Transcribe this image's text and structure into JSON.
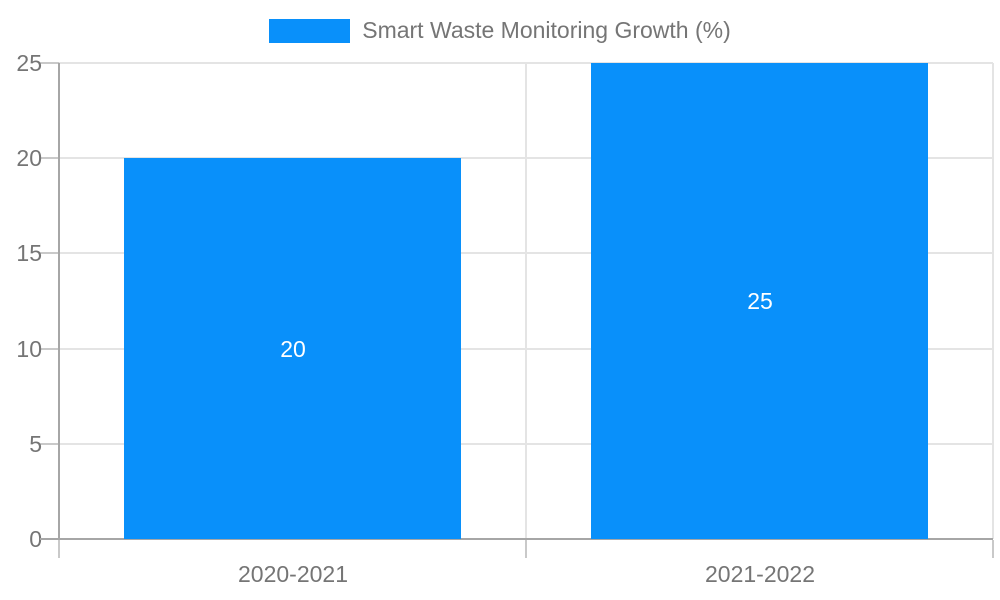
{
  "chart_data": {
    "type": "bar",
    "title": "",
    "legend_label": "Smart Waste Monitoring Growth (%)",
    "legend_position": "top",
    "categories": [
      "2020-2021",
      "2021-2022"
    ],
    "series": [
      {
        "name": "Smart Waste Monitoring Growth (%)",
        "values": [
          20,
          25
        ]
      }
    ],
    "bar_labels": [
      "20",
      "25"
    ],
    "xlabel": "",
    "ylabel": "",
    "ylim": [
      0,
      25
    ],
    "yticks": [
      0,
      5,
      10,
      15,
      20,
      25
    ],
    "grid": "on",
    "colors": {
      "bar": "#0990fa",
      "axis": "#a6a6a6",
      "gridline": "#e4e4e4",
      "tick_mark": "#c9c9c9",
      "text": "#757575",
      "bar_label": "#ffffff",
      "background": "#ffffff"
    }
  }
}
